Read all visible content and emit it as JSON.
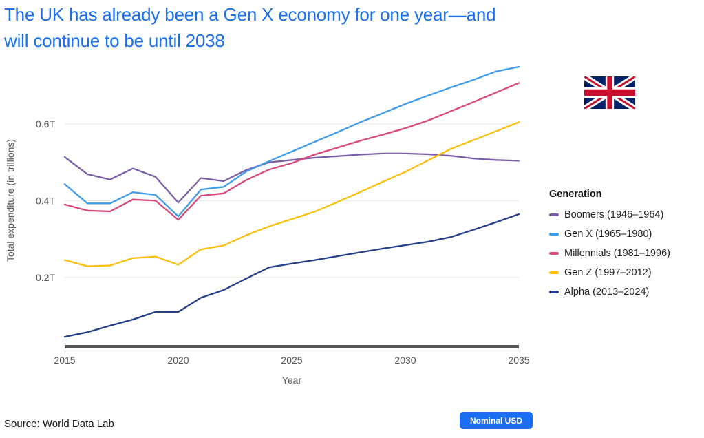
{
  "title": "The UK has already been a Gen X economy for one year—and will continue to be until 2038",
  "source": "Source: World Data Lab",
  "badge": "Nominal USD",
  "flag_name": "uk-flag-icon",
  "chart_data": {
    "type": "line",
    "title": "The UK has already been a Gen X economy for one year—and will continue to be until 2038",
    "xlabel": "Year",
    "ylabel": "Total expenditure (in trillions)",
    "xlim": [
      2015,
      2035
    ],
    "ylim": [
      0.02,
      0.74
    ],
    "xticks": [
      2015,
      2020,
      2025,
      2030,
      2035
    ],
    "xtick_labels": [
      "2015",
      "2020",
      "2025",
      "2030",
      "2035"
    ],
    "yticks": [
      0.2,
      0.4,
      0.6
    ],
    "ytick_labels": [
      "0.2T",
      "0.4T",
      "0.6T"
    ],
    "legend_title": "Generation",
    "legend_position": "right",
    "x": [
      2015,
      2016,
      2017,
      2018,
      2019,
      2020,
      2021,
      2022,
      2023,
      2024,
      2025,
      2026,
      2027,
      2028,
      2029,
      2030,
      2031,
      2032,
      2033,
      2034,
      2035
    ],
    "series": [
      {
        "name": "Boomers (1946–1964)",
        "color": "#7b5ea7",
        "values": [
          0.514,
          0.469,
          0.455,
          0.484,
          0.462,
          0.395,
          0.459,
          0.451,
          0.48,
          0.5,
          0.506,
          0.512,
          0.516,
          0.52,
          0.523,
          0.523,
          0.521,
          0.517,
          0.51,
          0.506,
          0.504
        ]
      },
      {
        "name": "Gen X (1965–1980)",
        "color": "#3d9be9",
        "values": [
          0.443,
          0.393,
          0.393,
          0.422,
          0.415,
          0.359,
          0.429,
          0.436,
          0.476,
          0.503,
          0.528,
          0.553,
          0.578,
          0.604,
          0.628,
          0.652,
          0.674,
          0.695,
          0.715,
          0.737,
          0.749
        ]
      },
      {
        "name": "Millennials (1981–1996)",
        "color": "#d9487d",
        "values": [
          0.39,
          0.374,
          0.372,
          0.403,
          0.4,
          0.35,
          0.413,
          0.419,
          0.454,
          0.481,
          0.498,
          0.52,
          0.538,
          0.556,
          0.572,
          0.589,
          0.609,
          0.633,
          0.657,
          0.682,
          0.707
        ]
      },
      {
        "name": "Gen Z (1997–2012)",
        "color": "#fbbf0b",
        "values": [
          0.245,
          0.229,
          0.231,
          0.25,
          0.254,
          0.233,
          0.273,
          0.283,
          0.31,
          0.333,
          0.352,
          0.371,
          0.396,
          0.422,
          0.449,
          0.475,
          0.505,
          0.535,
          0.558,
          0.581,
          0.605
        ]
      },
      {
        "name": "Alpha (2013–2024)",
        "color": "#233f8a",
        "values": [
          0.045,
          0.057,
          0.074,
          0.09,
          0.11,
          0.11,
          0.147,
          0.167,
          0.197,
          0.226,
          0.236,
          0.245,
          0.255,
          0.265,
          0.275,
          0.284,
          0.293,
          0.305,
          0.324,
          0.344,
          0.365
        ]
      }
    ]
  }
}
